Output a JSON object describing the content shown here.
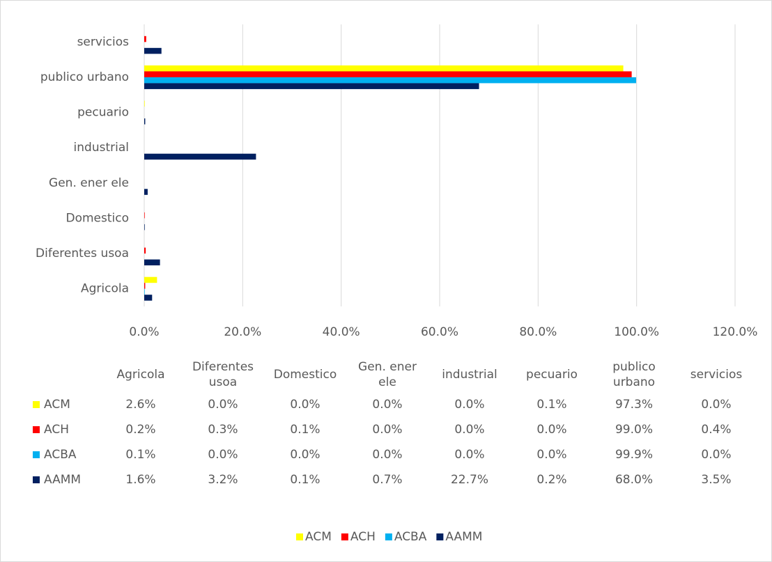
{
  "chart_data": {
    "type": "bar",
    "orientation": "horizontal",
    "categories": [
      "Agricola",
      "Diferentes usoa",
      "Domestico",
      "Gen. ener ele",
      "industrial",
      "pecuario",
      "publico urbano",
      "servicios"
    ],
    "series": [
      {
        "name": "ACM",
        "color": "#ffff00",
        "values": [
          2.6,
          0,
          0,
          0,
          0,
          0.1,
          97.3,
          0
        ],
        "value_labels": [
          "2.6%",
          "0.0%",
          "0.0%",
          "0.0%",
          "0.0%",
          "0.1%",
          "97.3%",
          "0.0%"
        ]
      },
      {
        "name": "ACH",
        "color": "#ff0000",
        "values": [
          0.2,
          0.3,
          0.1,
          0,
          0,
          0,
          99.0,
          0.4
        ],
        "value_labels": [
          "0.2%",
          "0.3%",
          "0.1%",
          "0.0%",
          "0.0%",
          "0.0%",
          "99.0%",
          "0.4%"
        ]
      },
      {
        "name": "ACBA",
        "color": "#00b0f0",
        "values": [
          0.1,
          0,
          0,
          0,
          0,
          0,
          99.9,
          0
        ],
        "value_labels": [
          "0.1%",
          "0.0%",
          "0.0%",
          "0.0%",
          "0.0%",
          "0.0%",
          "99.9%",
          "0.0%"
        ]
      },
      {
        "name": "AAMM",
        "color": "#002060",
        "values": [
          1.6,
          3.2,
          0.1,
          0.7,
          22.7,
          0.2,
          68.0,
          3.5
        ],
        "value_labels": [
          "1.6%",
          "3.2%",
          "0.1%",
          "0.7%",
          "22.7%",
          "0.2%",
          "68.0%",
          "3.5%"
        ]
      }
    ],
    "xlim": [
      0,
      120
    ],
    "xticks": [
      {
        "value": 0,
        "label": "0.0%"
      },
      {
        "value": 20,
        "label": "20.0%"
      },
      {
        "value": 40,
        "label": "40.0%"
      },
      {
        "value": 60,
        "label": "60.0%"
      },
      {
        "value": 80,
        "label": "80.0%"
      },
      {
        "value": 100,
        "label": "100.0%"
      },
      {
        "value": 120,
        "label": "120.0%"
      }
    ],
    "grid": true,
    "legend": "bottom",
    "data_table": true
  }
}
